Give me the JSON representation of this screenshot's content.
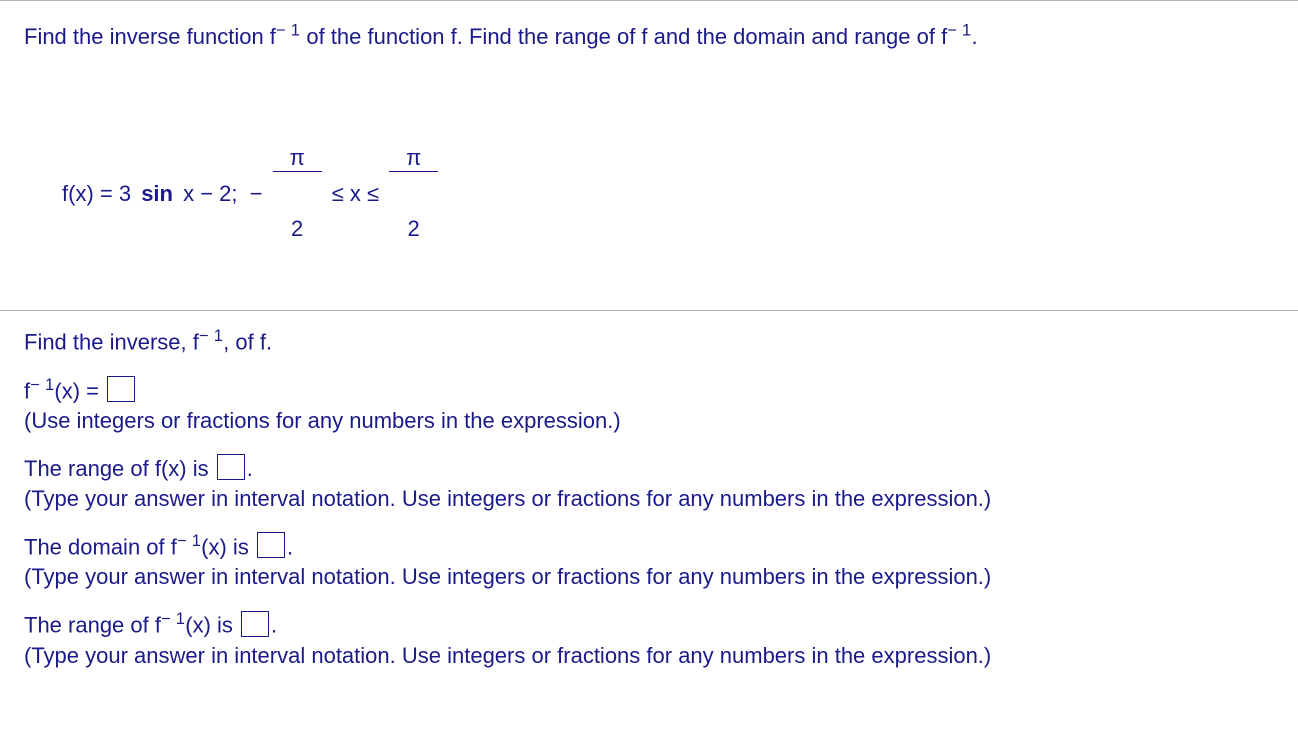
{
  "intro": {
    "prefix": "Find the inverse function f",
    "exp1": "− 1",
    "mid": " of the function f. Find the range of f and the domain and range of f",
    "exp2": "− 1",
    "suffix": "."
  },
  "equation": {
    "lhs": "f(x) = 3 ",
    "bold": "sin",
    "after_trig": " x − 2;  − ",
    "frac1_num": "π",
    "frac1_den": "2",
    "mid": " ≤ x ≤ ",
    "frac2_num": "π",
    "frac2_den": "2"
  },
  "find_inverse": {
    "prefix": "Find the inverse, f",
    "exp": "− 1",
    "suffix": ", of f."
  },
  "q1": {
    "prefix": "f",
    "exp": "− 1",
    "after": "(x) = ",
    "hint": "(Use integers or fractions for any numbers in the expression.)"
  },
  "q2": {
    "prompt_prefix": "The range of f(x) is ",
    "prompt_suffix": ".",
    "hint": "(Type your answer in interval notation. Use integers or fractions for any numbers in the expression.)"
  },
  "q3": {
    "prompt_prefix": "The domain of f",
    "exp": "− 1",
    "prompt_mid": "(x) is ",
    "prompt_suffix": ".",
    "hint": "(Type your answer in interval notation. Use integers or fractions for any numbers in the expression.)"
  },
  "q4": {
    "prompt_prefix": "The range of f",
    "exp": "− 1",
    "prompt_mid": "(x) is ",
    "prompt_suffix": ".",
    "hint": "(Type your answer in interval notation. Use integers or fractions for any numbers in the expression.)"
  }
}
